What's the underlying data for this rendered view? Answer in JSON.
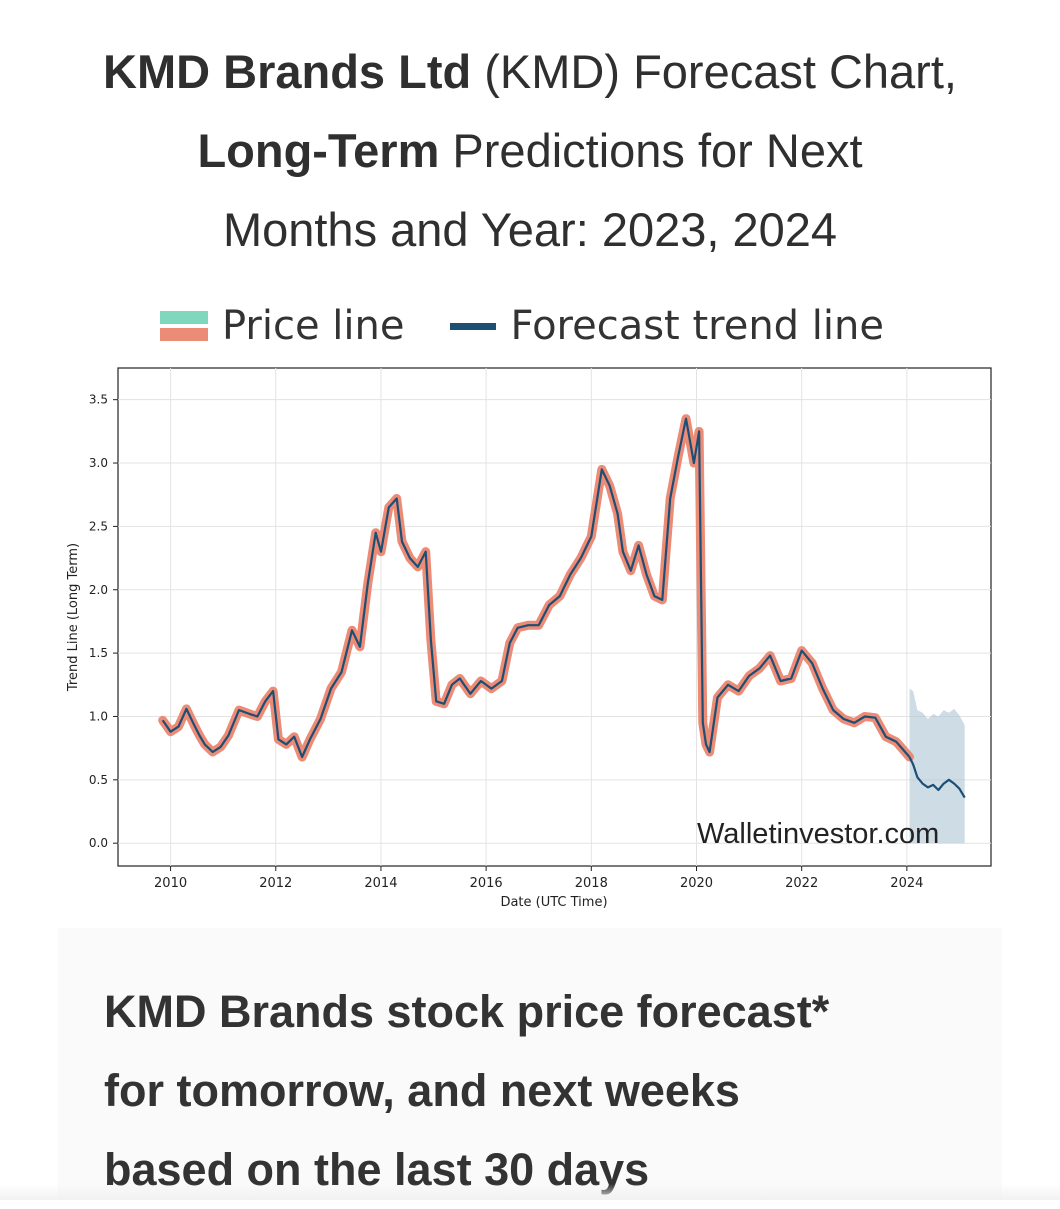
{
  "header": {
    "title_bold_1": "KMD Brands Ltd",
    "title_normal_1": " (KMD) Forecast Chart,",
    "title_bold_2": "Long-Term",
    "title_normal_2": " Predictions for Next",
    "title_normal_3": "Months and Year: 2023, 2024"
  },
  "legend": {
    "price_label": "Price line",
    "forecast_label": "Forecast trend line"
  },
  "colors": {
    "price_band": "#ec8b76",
    "trend_line": "#1d4e74",
    "confidence_band": "#aec4d4",
    "legend_green": "#7fd8be"
  },
  "chart_data": {
    "type": "line",
    "xlabel": "Date (UTC Time)",
    "ylabel": "Trend Line (Long Term)",
    "xlim": [
      2009.0,
      2025.6
    ],
    "ylim": [
      -0.18,
      3.75
    ],
    "xticks": [
      2010,
      2012,
      2014,
      2016,
      2018,
      2020,
      2022,
      2024
    ],
    "yticks": [
      0.0,
      0.5,
      1.0,
      1.5,
      2.0,
      2.5,
      3.0,
      3.5
    ],
    "ytick_labels": [
      "0.0",
      "0.5",
      "1.0",
      "1.5",
      "2.0",
      "2.5",
      "3.0",
      "3.5"
    ],
    "grid": true,
    "watermark": "Walletinvestor.com",
    "series": [
      {
        "name": "Price line",
        "x": [
          2009.85,
          2010.0,
          2010.15,
          2010.3,
          2010.45,
          2010.55,
          2010.65,
          2010.8,
          2010.95,
          2011.1,
          2011.3,
          2011.5,
          2011.65,
          2011.8,
          2011.95,
          2012.05,
          2012.2,
          2012.35,
          2012.5,
          2012.65,
          2012.85,
          2013.05,
          2013.25,
          2013.45,
          2013.6,
          2013.75,
          2013.9,
          2014.0,
          2014.15,
          2014.3,
          2014.4,
          2014.55,
          2014.7,
          2014.85,
          2014.95,
          2015.05,
          2015.2,
          2015.35,
          2015.5,
          2015.7,
          2015.9,
          2016.1,
          2016.3,
          2016.45,
          2016.6,
          2016.8,
          2017.0,
          2017.2,
          2017.4,
          2017.6,
          2017.8,
          2018.0,
          2018.2,
          2018.35,
          2018.5,
          2018.6,
          2018.75,
          2018.9,
          2019.05,
          2019.2,
          2019.35,
          2019.5,
          2019.65,
          2019.8,
          2019.95,
          2020.05,
          2020.12,
          2020.18,
          2020.25,
          2020.4,
          2020.6,
          2020.8,
          2021.0,
          2021.2,
          2021.4,
          2021.6,
          2021.8,
          2022.0,
          2022.2,
          2022.4,
          2022.6,
          2022.8,
          2023.0,
          2023.2,
          2023.4,
          2023.6,
          2023.8,
          2024.05
        ],
        "values": [
          0.97,
          0.88,
          0.92,
          1.06,
          0.93,
          0.85,
          0.78,
          0.72,
          0.76,
          0.85,
          1.05,
          1.02,
          1.0,
          1.12,
          1.2,
          0.82,
          0.78,
          0.84,
          0.68,
          0.82,
          0.98,
          1.22,
          1.35,
          1.68,
          1.55,
          2.05,
          2.45,
          2.3,
          2.65,
          2.72,
          2.38,
          2.25,
          2.18,
          2.3,
          1.6,
          1.12,
          1.1,
          1.25,
          1.3,
          1.18,
          1.28,
          1.22,
          1.28,
          1.58,
          1.7,
          1.72,
          1.72,
          1.88,
          1.95,
          2.12,
          2.25,
          2.42,
          2.95,
          2.82,
          2.6,
          2.3,
          2.15,
          2.35,
          2.12,
          1.95,
          1.92,
          2.72,
          3.05,
          3.35,
          3.0,
          3.25,
          0.95,
          0.78,
          0.72,
          1.15,
          1.25,
          1.2,
          1.32,
          1.38,
          1.48,
          1.28,
          1.3,
          1.52,
          1.42,
          1.22,
          1.05,
          0.98,
          0.95,
          1.0,
          0.99,
          0.84,
          0.8,
          0.68
        ]
      },
      {
        "name": "Forecast trend line",
        "x": [
          2024.05,
          2024.12,
          2024.2,
          2024.3,
          2024.4,
          2024.5,
          2024.6,
          2024.7,
          2024.8,
          2024.9,
          2025.0,
          2025.1
        ],
        "values": [
          0.68,
          0.62,
          0.52,
          0.47,
          0.44,
          0.46,
          0.42,
          0.47,
          0.5,
          0.47,
          0.43,
          0.36
        ],
        "band_upper": [
          1.22,
          1.2,
          1.05,
          1.03,
          0.98,
          1.02,
          1.0,
          1.05,
          1.03,
          1.06,
          1.01,
          0.93
        ],
        "band_lower": [
          0.0,
          0.0,
          0.0,
          0.0,
          0.0,
          0.0,
          0.0,
          0.0,
          0.0,
          0.0,
          0.0,
          0.0
        ]
      }
    ]
  },
  "section": {
    "heading_line_1": "KMD Brands stock price forecast*",
    "heading_line_2": "for tomorrow, and next weeks",
    "heading_line_3": "based on the last 30 days"
  }
}
